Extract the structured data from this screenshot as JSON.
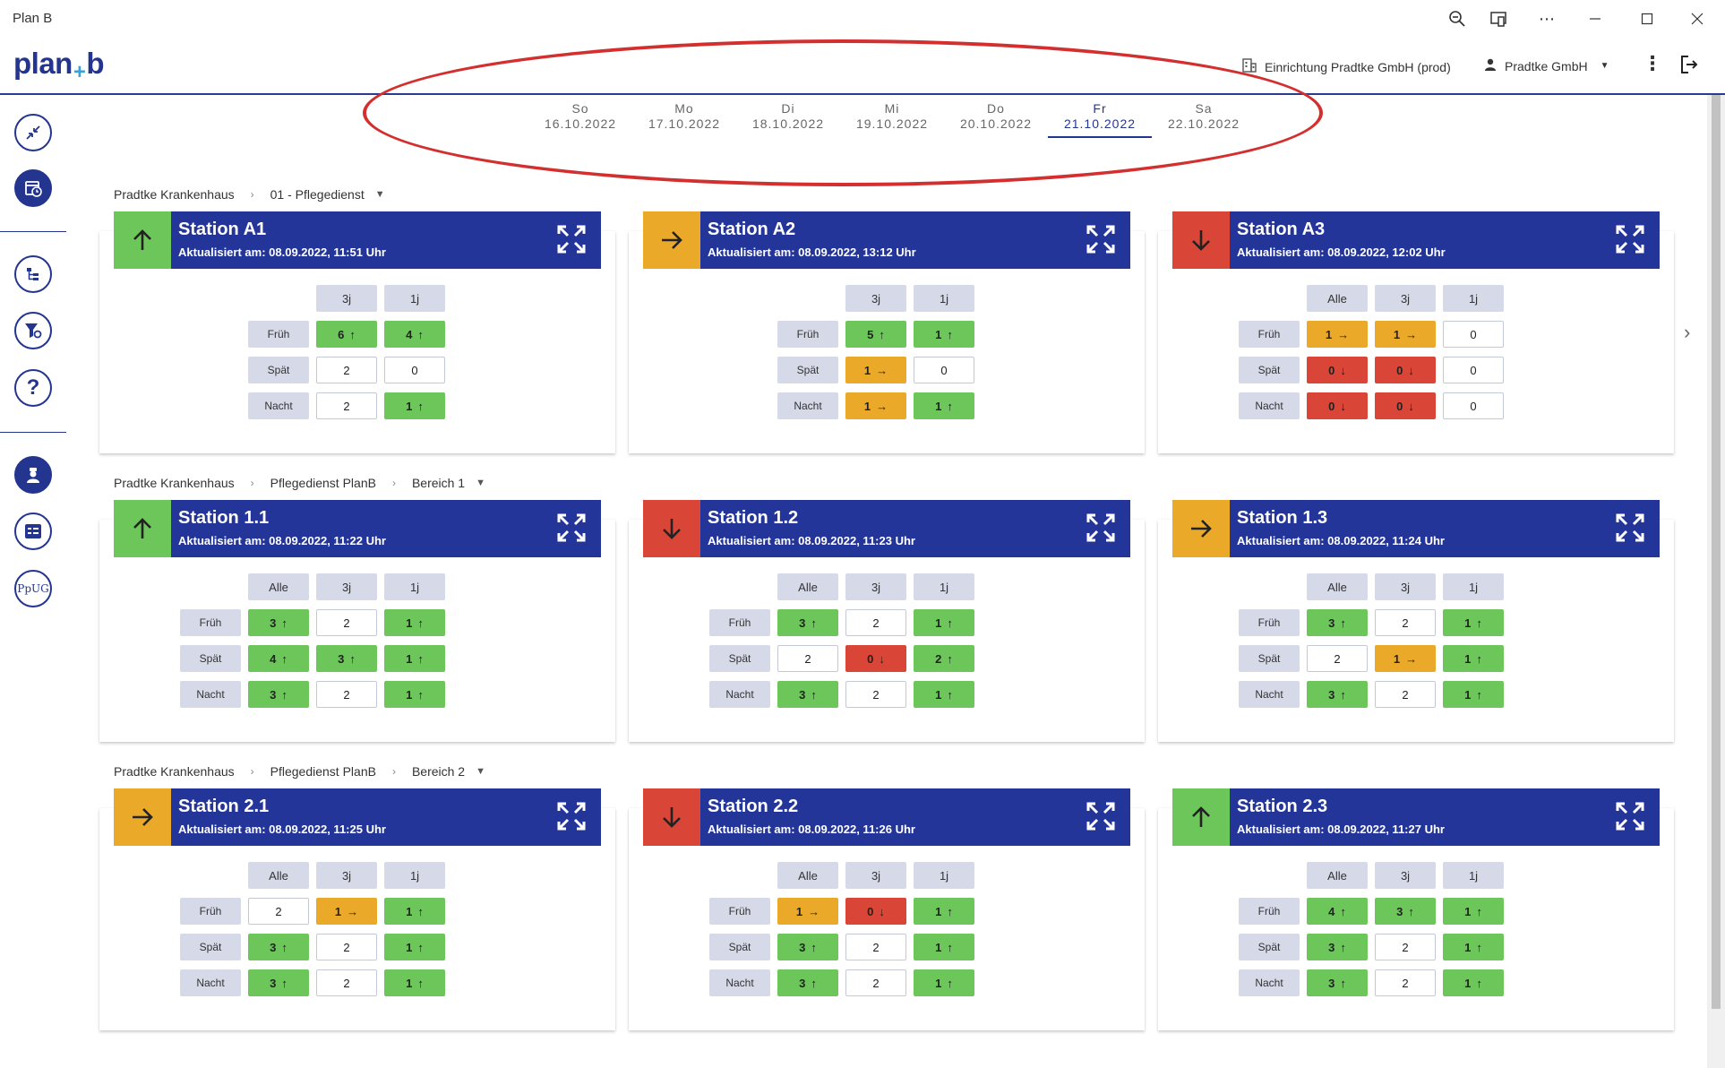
{
  "window": {
    "title": "Plan B"
  },
  "header": {
    "logo_left": "plan",
    "logo_plus": "+",
    "logo_right": "b",
    "facility": "Einrichtung Pradtke GmbH (prod)",
    "user": "Pradtke GmbH"
  },
  "dates": [
    {
      "day": "So",
      "date": "16.10.2022",
      "active": false
    },
    {
      "day": "Mo",
      "date": "17.10.2022",
      "active": false
    },
    {
      "day": "Di",
      "date": "18.10.2022",
      "active": false
    },
    {
      "day": "Mi",
      "date": "19.10.2022",
      "active": false
    },
    {
      "day": "Do",
      "date": "20.10.2022",
      "active": false
    },
    {
      "day": "Fr",
      "date": "21.10.2022",
      "active": true
    },
    {
      "day": "Sa",
      "date": "22.10.2022",
      "active": false
    }
  ],
  "sidebar": {
    "ppug_label": "PpUG"
  },
  "groups": [
    {
      "breadcrumb": [
        "Pradtke Krankenhaus",
        "01 - Pflegedienst"
      ],
      "stations": [
        {
          "title": "Station A1",
          "updated": "Aktualisiert am: 08.09.2022, 11:51 Uhr",
          "status": "up",
          "columns": [
            "3j",
            "1j"
          ],
          "rows": [
            {
              "label": "Früh",
              "cells": [
                {
                  "v": "6",
                  "s": "up"
                },
                {
                  "v": "4",
                  "s": "up"
                }
              ]
            },
            {
              "label": "Spät",
              "cells": [
                {
                  "v": "2",
                  "s": "none"
                },
                {
                  "v": "0",
                  "s": "none"
                }
              ]
            },
            {
              "label": "Nacht",
              "cells": [
                {
                  "v": "2",
                  "s": "none"
                },
                {
                  "v": "1",
                  "s": "up"
                }
              ]
            }
          ]
        },
        {
          "title": "Station A2",
          "updated": "Aktualisiert am: 08.09.2022, 13:12 Uhr",
          "status": "right",
          "columns": [
            "3j",
            "1j"
          ],
          "rows": [
            {
              "label": "Früh",
              "cells": [
                {
                  "v": "5",
                  "s": "up"
                },
                {
                  "v": "1",
                  "s": "up"
                }
              ]
            },
            {
              "label": "Spät",
              "cells": [
                {
                  "v": "1",
                  "s": "right"
                },
                {
                  "v": "0",
                  "s": "none"
                }
              ]
            },
            {
              "label": "Nacht",
              "cells": [
                {
                  "v": "1",
                  "s": "right"
                },
                {
                  "v": "1",
                  "s": "up"
                }
              ]
            }
          ]
        },
        {
          "title": "Station A3",
          "updated": "Aktualisiert am: 08.09.2022, 12:02 Uhr",
          "status": "down",
          "columns": [
            "Alle",
            "3j",
            "1j"
          ],
          "rows": [
            {
              "label": "Früh",
              "cells": [
                {
                  "v": "1",
                  "s": "right"
                },
                {
                  "v": "1",
                  "s": "right"
                },
                {
                  "v": "0",
                  "s": "none"
                }
              ]
            },
            {
              "label": "Spät",
              "cells": [
                {
                  "v": "0",
                  "s": "down"
                },
                {
                  "v": "0",
                  "s": "down"
                },
                {
                  "v": "0",
                  "s": "none"
                }
              ]
            },
            {
              "label": "Nacht",
              "cells": [
                {
                  "v": "0",
                  "s": "down"
                },
                {
                  "v": "0",
                  "s": "down"
                },
                {
                  "v": "0",
                  "s": "none"
                }
              ]
            }
          ]
        }
      ]
    },
    {
      "breadcrumb": [
        "Pradtke Krankenhaus",
        "Pflegedienst PlanB",
        "Bereich 1"
      ],
      "stations": [
        {
          "title": "Station 1.1",
          "updated": "Aktualisiert am: 08.09.2022, 11:22 Uhr",
          "status": "up",
          "columns": [
            "Alle",
            "3j",
            "1j"
          ],
          "rows": [
            {
              "label": "Früh",
              "cells": [
                {
                  "v": "3",
                  "s": "up"
                },
                {
                  "v": "2",
                  "s": "none"
                },
                {
                  "v": "1",
                  "s": "up"
                }
              ]
            },
            {
              "label": "Spät",
              "cells": [
                {
                  "v": "4",
                  "s": "up"
                },
                {
                  "v": "3",
                  "s": "up"
                },
                {
                  "v": "1",
                  "s": "up"
                }
              ]
            },
            {
              "label": "Nacht",
              "cells": [
                {
                  "v": "3",
                  "s": "up"
                },
                {
                  "v": "2",
                  "s": "none"
                },
                {
                  "v": "1",
                  "s": "up"
                }
              ]
            }
          ]
        },
        {
          "title": "Station 1.2",
          "updated": "Aktualisiert am: 08.09.2022, 11:23 Uhr",
          "status": "down",
          "columns": [
            "Alle",
            "3j",
            "1j"
          ],
          "rows": [
            {
              "label": "Früh",
              "cells": [
                {
                  "v": "3",
                  "s": "up"
                },
                {
                  "v": "2",
                  "s": "none"
                },
                {
                  "v": "1",
                  "s": "up"
                }
              ]
            },
            {
              "label": "Spät",
              "cells": [
                {
                  "v": "2",
                  "s": "none"
                },
                {
                  "v": "0",
                  "s": "down"
                },
                {
                  "v": "2",
                  "s": "up"
                }
              ]
            },
            {
              "label": "Nacht",
              "cells": [
                {
                  "v": "3",
                  "s": "up"
                },
                {
                  "v": "2",
                  "s": "none"
                },
                {
                  "v": "1",
                  "s": "up"
                }
              ]
            }
          ]
        },
        {
          "title": "Station 1.3",
          "updated": "Aktualisiert am: 08.09.2022, 11:24 Uhr",
          "status": "right",
          "columns": [
            "Alle",
            "3j",
            "1j"
          ],
          "rows": [
            {
              "label": "Früh",
              "cells": [
                {
                  "v": "3",
                  "s": "up"
                },
                {
                  "v": "2",
                  "s": "none"
                },
                {
                  "v": "1",
                  "s": "up"
                }
              ]
            },
            {
              "label": "Spät",
              "cells": [
                {
                  "v": "2",
                  "s": "none"
                },
                {
                  "v": "1",
                  "s": "right"
                },
                {
                  "v": "1",
                  "s": "up"
                }
              ]
            },
            {
              "label": "Nacht",
              "cells": [
                {
                  "v": "3",
                  "s": "up"
                },
                {
                  "v": "2",
                  "s": "none"
                },
                {
                  "v": "1",
                  "s": "up"
                }
              ]
            }
          ]
        }
      ]
    },
    {
      "breadcrumb": [
        "Pradtke Krankenhaus",
        "Pflegedienst PlanB",
        "Bereich 2"
      ],
      "stations": [
        {
          "title": "Station 2.1",
          "updated": "Aktualisiert am: 08.09.2022, 11:25 Uhr",
          "status": "right",
          "columns": [
            "Alle",
            "3j",
            "1j"
          ],
          "rows": [
            {
              "label": "Früh",
              "cells": [
                {
                  "v": "2",
                  "s": "none"
                },
                {
                  "v": "1",
                  "s": "right"
                },
                {
                  "v": "1",
                  "s": "up"
                }
              ]
            },
            {
              "label": "Spät",
              "cells": [
                {
                  "v": "3",
                  "s": "up"
                },
                {
                  "v": "2",
                  "s": "none"
                },
                {
                  "v": "1",
                  "s": "up"
                }
              ]
            },
            {
              "label": "Nacht",
              "cells": [
                {
                  "v": "3",
                  "s": "up"
                },
                {
                  "v": "2",
                  "s": "none"
                },
                {
                  "v": "1",
                  "s": "up"
                }
              ]
            }
          ]
        },
        {
          "title": "Station 2.2",
          "updated": "Aktualisiert am: 08.09.2022, 11:26 Uhr",
          "status": "down",
          "columns": [
            "Alle",
            "3j",
            "1j"
          ],
          "rows": [
            {
              "label": "Früh",
              "cells": [
                {
                  "v": "1",
                  "s": "right"
                },
                {
                  "v": "0",
                  "s": "down"
                },
                {
                  "v": "1",
                  "s": "up"
                }
              ]
            },
            {
              "label": "Spät",
              "cells": [
                {
                  "v": "3",
                  "s": "up"
                },
                {
                  "v": "2",
                  "s": "none"
                },
                {
                  "v": "1",
                  "s": "up"
                }
              ]
            },
            {
              "label": "Nacht",
              "cells": [
                {
                  "v": "3",
                  "s": "up"
                },
                {
                  "v": "2",
                  "s": "none"
                },
                {
                  "v": "1",
                  "s": "up"
                }
              ]
            }
          ]
        },
        {
          "title": "Station 2.3",
          "updated": "Aktualisiert am: 08.09.2022, 11:27 Uhr",
          "status": "up",
          "columns": [
            "Alle",
            "3j",
            "1j"
          ],
          "rows": [
            {
              "label": "Früh",
              "cells": [
                {
                  "v": "4",
                  "s": "up"
                },
                {
                  "v": "3",
                  "s": "up"
                },
                {
                  "v": "1",
                  "s": "up"
                }
              ]
            },
            {
              "label": "Spät",
              "cells": [
                {
                  "v": "3",
                  "s": "up"
                },
                {
                  "v": "2",
                  "s": "none"
                },
                {
                  "v": "1",
                  "s": "up"
                }
              ]
            },
            {
              "label": "Nacht",
              "cells": [
                {
                  "v": "3",
                  "s": "up"
                },
                {
                  "v": "2",
                  "s": "none"
                },
                {
                  "v": "1",
                  "s": "up"
                }
              ]
            }
          ]
        }
      ]
    }
  ],
  "colors": {
    "brand": "#24358f",
    "up": "#6cc65a",
    "right": "#eba92a",
    "down": "#d94536",
    "annotation": "#d32f2f"
  }
}
